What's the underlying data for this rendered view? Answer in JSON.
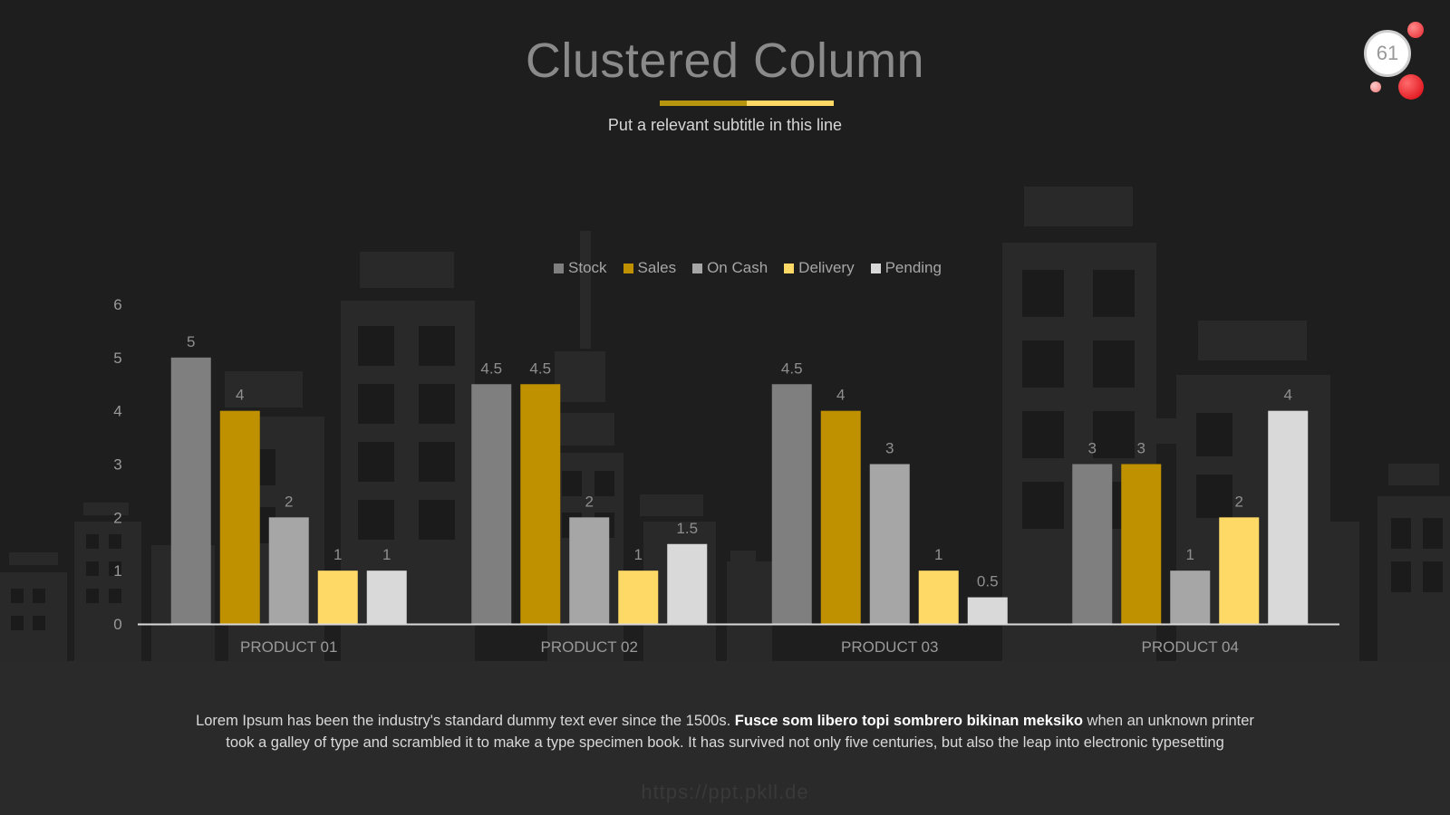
{
  "slide": {
    "title": "Clustered Column",
    "subtitle": "Put a relevant subtitle in this line",
    "page_number": "61",
    "body_text_start": "Lorem Ipsum has been the industry's standard dummy text ever since the 1500s. ",
    "body_text_bold": "Fusce som libero topi sombrero bikinan meksiko",
    "body_text_end": " when an unknown printer took a galley of type and scrambled it to make a type specimen book. It has survived not only five centuries, but also the leap into electronic typesetting",
    "watermark": "https://ppt.pkll.de",
    "colors": {
      "background": "#1f1e1f",
      "accent_gold": "#b8950f",
      "accent_yellow": "#ffd966",
      "badge_red": "#e3262e"
    }
  },
  "chart_data": {
    "type": "bar",
    "title": "",
    "xlabel": "",
    "ylabel": "",
    "categories": [
      "PRODUCT 01",
      "PRODUCT 02",
      "PRODUCT 03",
      "PRODUCT 04"
    ],
    "ylim": [
      0,
      6
    ],
    "yticks": [
      0,
      1,
      2,
      3,
      4,
      5,
      6
    ],
    "grid": false,
    "legend_position": "top-center",
    "series": [
      {
        "name": "Stock",
        "color": "#7f7f7f",
        "values": [
          5,
          4.5,
          4.5,
          3
        ]
      },
      {
        "name": "Sales",
        "color": "#bf9000",
        "values": [
          4,
          4.5,
          4,
          3
        ]
      },
      {
        "name": "On Cash",
        "color": "#a6a6a6",
        "values": [
          2,
          2,
          3,
          1
        ]
      },
      {
        "name": "Delivery",
        "color": "#ffd966",
        "values": [
          1,
          1,
          1,
          2
        ]
      },
      {
        "name": "Pending",
        "color": "#d9d9d9",
        "values": [
          1,
          1.5,
          0.5,
          4
        ]
      }
    ]
  }
}
